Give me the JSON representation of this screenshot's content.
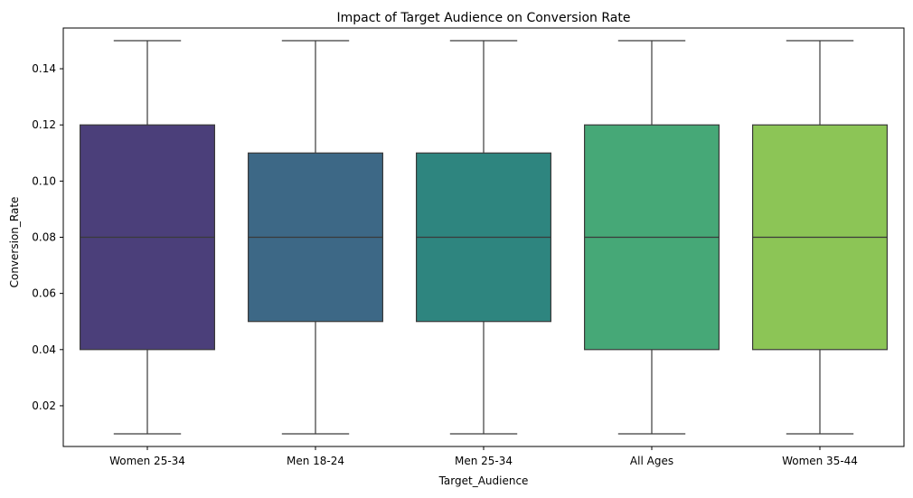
{
  "chart_data": {
    "type": "box",
    "title": "Impact of Target Audience on Conversion Rate",
    "xlabel": "Target_Audience",
    "ylabel": "Conversion_Rate",
    "ylim": [
      0.0055,
      0.1545
    ],
    "yticks": [
      0.02,
      0.04,
      0.06,
      0.08,
      0.1,
      0.12,
      0.14
    ],
    "ytick_labels": [
      "0.02",
      "0.04",
      "0.06",
      "0.08",
      "0.10",
      "0.12",
      "0.14"
    ],
    "grid": false,
    "categories": [
      "Women 25-34",
      "Men 18-24",
      "Men 25-34",
      "All Ages",
      "Women 35-44"
    ],
    "boxes": [
      {
        "category": "Women 25-34",
        "min": 0.01,
        "q1": 0.04,
        "median": 0.08,
        "q3": 0.12,
        "max": 0.15,
        "color": "#4b3f7a"
      },
      {
        "category": "Men 18-24",
        "min": 0.01,
        "q1": 0.05,
        "median": 0.08,
        "q3": 0.11,
        "max": 0.15,
        "color": "#3d6886"
      },
      {
        "category": "Men 25-34",
        "min": 0.01,
        "q1": 0.05,
        "median": 0.08,
        "q3": 0.11,
        "max": 0.15,
        "color": "#2e857f"
      },
      {
        "category": "All Ages",
        "min": 0.01,
        "q1": 0.04,
        "median": 0.08,
        "q3": 0.12,
        "max": 0.15,
        "color": "#46a877"
      },
      {
        "category": "Women 35-44",
        "min": 0.01,
        "q1": 0.04,
        "median": 0.08,
        "q3": 0.12,
        "max": 0.15,
        "color": "#8cc556"
      }
    ]
  }
}
